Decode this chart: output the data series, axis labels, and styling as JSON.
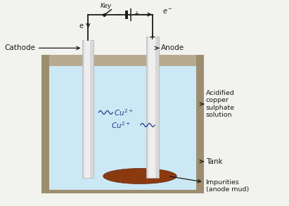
{
  "bg_color": "#f2f2ee",
  "tank_outer_color": "#9e8e70",
  "tank_inner_color": "#b8aa90",
  "solution_color_top": "#cce8f5",
  "solution_color_bot": "#a8d4ee",
  "electrode_color": "#d8d8d8",
  "electrode_edge": "#b0b0b0",
  "wire_color": "#1a1a1a",
  "impurity_color": "#8B3A10",
  "impurity_edge": "#5c2008",
  "cu_color": "#1a3a8a",
  "text_color": "#1a1a1a",
  "labels": {
    "key": "Key",
    "cathode": "Cathode",
    "anode": "Anode",
    "solution": "Acidified\ncopper\nsulphate\nsolution",
    "tank": "Tank",
    "impurities": "Impurities\n(anode mud)",
    "e_minus": "e⁻",
    "e_down": "e",
    "minus": "−",
    "plus_bat": "+",
    "plus_anode": "+"
  },
  "figsize": [
    4.11,
    2.93
  ],
  "dpi": 100
}
